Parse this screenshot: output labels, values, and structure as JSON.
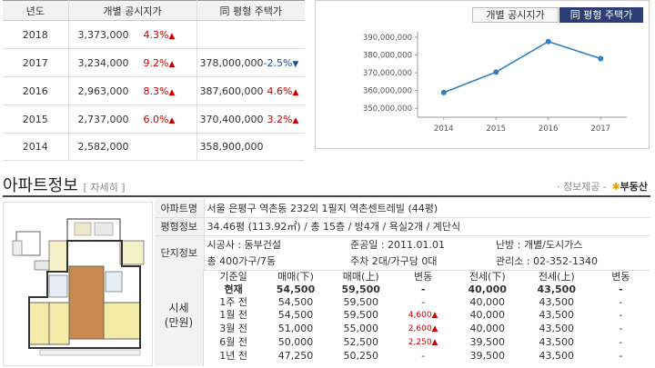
{
  "price_table": {
    "headers": [
      "년도",
      "개별 공시지가",
      "同 평형 주택가"
    ],
    "rows": [
      {
        "year": "2018",
        "price": "3,373,000",
        "change": "4.3%",
        "same_price": "",
        "same_change": ""
      },
      {
        "year": "2017",
        "price": "3,234,000",
        "change": "9.2%",
        "same_price": "378,000,000",
        "same_change": "-2.5%"
      },
      {
        "year": "2016",
        "price": "2,963,000",
        "change": "8.3%",
        "same_price": "387,600,000",
        "same_change": "4.6%"
      },
      {
        "year": "2015",
        "price": "2,737,000",
        "change": "6.0%",
        "same_price": "370,400,000",
        "same_change": "3.2%"
      },
      {
        "year": "2014",
        "price": "2,582,000",
        "change": "",
        "same_price": "358,900,000",
        "same_change": ""
      }
    ]
  },
  "chart": {
    "tabs": [
      "개별 공시지가",
      "同 평형 주택가"
    ],
    "active_tab": "同 평형 주택가",
    "line_color": "#2f7fc1"
  },
  "chart_data": {
    "type": "line",
    "title": "",
    "xlabel": "",
    "ylabel": "",
    "x": [
      "2014",
      "2015",
      "2016",
      "2017"
    ],
    "series": [
      {
        "values": [
          358900000,
          370400000,
          387600000,
          378000000
        ]
      }
    ],
    "ylim": [
      345000000,
      390000000
    ],
    "yticks": [
      350000000,
      360000000,
      370000000,
      380000000,
      390000000
    ],
    "ytick_labels": [
      "350,000,000",
      "360,000,000",
      "370,000,000",
      "380,000,000",
      "390,000,000"
    ],
    "grid": false
  },
  "apartment": {
    "title": "아파트정보",
    "detail_link": "[ 자세히 ]",
    "provider_prefix": "· 정보제공 -",
    "provider_logo": "부동산",
    "name_label": "아파트명",
    "name_value": "서울 은평구 역촌동 232외 1필지 역촌센트레빌 (44평)",
    "size_label": "평형정보",
    "size_value": "34.46평 (113.92㎡) / 총 15층 / 방4개 / 욕실2개 / 계단식",
    "complex_label": "단지정보",
    "builder": "시공사 : 동부건설",
    "completion": "준공일 : 2011.01.01",
    "heating": "난방 : 개별/도시가스",
    "households": "총 400가구/7동",
    "parking": "주차 2대/가구당 0대",
    "office": "관리소 : 02-352-1340"
  },
  "market": {
    "label_1": "시세",
    "label_2": "(만원)",
    "headers": [
      "기준일",
      "매매(下)",
      "매매(上)",
      "변동",
      "전세(下)",
      "전세(上)",
      "변동"
    ],
    "rows": [
      [
        "현재",
        "54,500",
        "59,500",
        "-",
        "40,000",
        "43,500",
        "-"
      ],
      [
        "1주 전",
        "54,500",
        "59,500",
        "-",
        "40,000",
        "43,500",
        "-"
      ],
      [
        "1월 전",
        "54,500",
        "59,500",
        "4,600",
        "40,000",
        "43,500",
        "-"
      ],
      [
        "3월 전",
        "51,000",
        "55,000",
        "2,600",
        "40,000",
        "43,500",
        "-"
      ],
      [
        "6월 전",
        "50,000",
        "52,500",
        "2,250",
        "39,500",
        "43,500",
        "-"
      ],
      [
        "1년 전",
        "47,250",
        "50,250",
        "-",
        "39,500",
        "43,500",
        "-"
      ]
    ]
  }
}
